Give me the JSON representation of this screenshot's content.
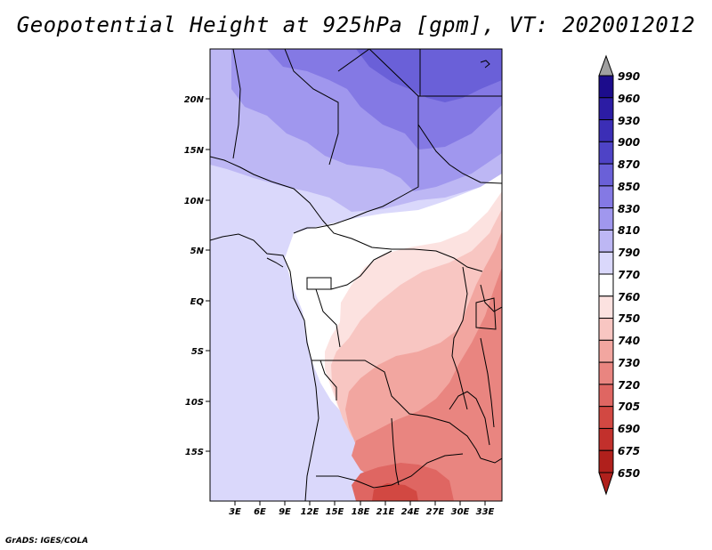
{
  "title": "Geopotential Height at 925hPa [gpm], VT: 2020012012",
  "credit": "GrADS: IGES/COLA",
  "map": {
    "lat_labels": [
      "20N",
      "15N",
      "10N",
      "5N",
      "EQ",
      "5S",
      "10S",
      "15S"
    ],
    "lon_labels": [
      "3E",
      "6E",
      "9E",
      "12E",
      "15E",
      "18E",
      "21E",
      "24E",
      "27E",
      "30E",
      "33E"
    ]
  },
  "colorbar": {
    "labels": [
      "990",
      "960",
      "930",
      "900",
      "870",
      "850",
      "830",
      "810",
      "790",
      "770",
      "760",
      "750",
      "740",
      "730",
      "720",
      "705",
      "690",
      "675",
      "650"
    ],
    "colors": [
      "#1c0c8c",
      "#2c1ca4",
      "#3b2eb6",
      "#4e43c6",
      "#6a60d8",
      "#8479e4",
      "#a097ee",
      "#bdb7f4",
      "#dad8fb",
      "#ffffff",
      "#fce2e0",
      "#f8c6c2",
      "#f2a6a0",
      "#e98580",
      "#df6662",
      "#d24842",
      "#c2302c",
      "#b0201c"
    ],
    "top_arrow": "#a0a0a0",
    "bottom_arrow": "#b0201c"
  }
}
